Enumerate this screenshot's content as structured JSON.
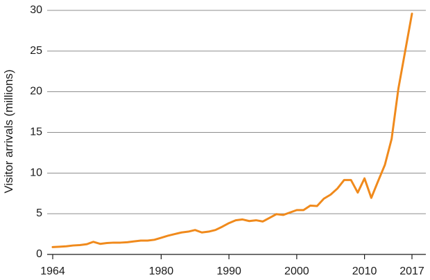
{
  "chart_data": {
    "type": "line",
    "title": "",
    "xlabel": "",
    "ylabel": "Visitor arrivals (millions)",
    "xlim": [
      1964,
      2017
    ],
    "ylim": [
      0,
      30
    ],
    "x_ticks": [
      1964,
      1980,
      1990,
      2000,
      2010,
      2017
    ],
    "y_ticks": [
      0,
      5,
      10,
      15,
      20,
      25,
      30
    ],
    "grid": "horizontal",
    "legend": "none",
    "line_color": "#f08a1c",
    "series": [
      {
        "x": [
          1964,
          1965,
          1966,
          1967,
          1968,
          1969,
          1970,
          1971,
          1972,
          1973,
          1974,
          1975,
          1976,
          1977,
          1978,
          1979,
          1980,
          1981,
          1982,
          1983,
          1984,
          1985,
          1986,
          1987,
          1988,
          1989,
          1990,
          1991,
          1992,
          1993,
          1994,
          1995,
          1996,
          1997,
          1998,
          1999,
          2000,
          2001,
          2002,
          2003,
          2004,
          2005,
          2006,
          2007,
          2008,
          2009,
          2010,
          2011,
          2012,
          2013,
          2014,
          2015,
          2016,
          2017
        ],
        "y": [
          0.9,
          0.95,
          1.0,
          1.1,
          1.15,
          1.25,
          1.55,
          1.3,
          1.4,
          1.45,
          1.45,
          1.5,
          1.6,
          1.7,
          1.7,
          1.8,
          2.05,
          2.3,
          2.5,
          2.7,
          2.8,
          3.0,
          2.7,
          2.8,
          3.0,
          3.4,
          3.85,
          4.2,
          4.3,
          4.1,
          4.2,
          4.05,
          4.5,
          4.95,
          4.85,
          5.15,
          5.45,
          5.45,
          6.0,
          5.95,
          6.85,
          7.35,
          8.1,
          9.15,
          9.15,
          7.6,
          9.35,
          6.95,
          9.0,
          11.0,
          14.2,
          20.4,
          25.0,
          29.6
        ]
      }
    ]
  }
}
